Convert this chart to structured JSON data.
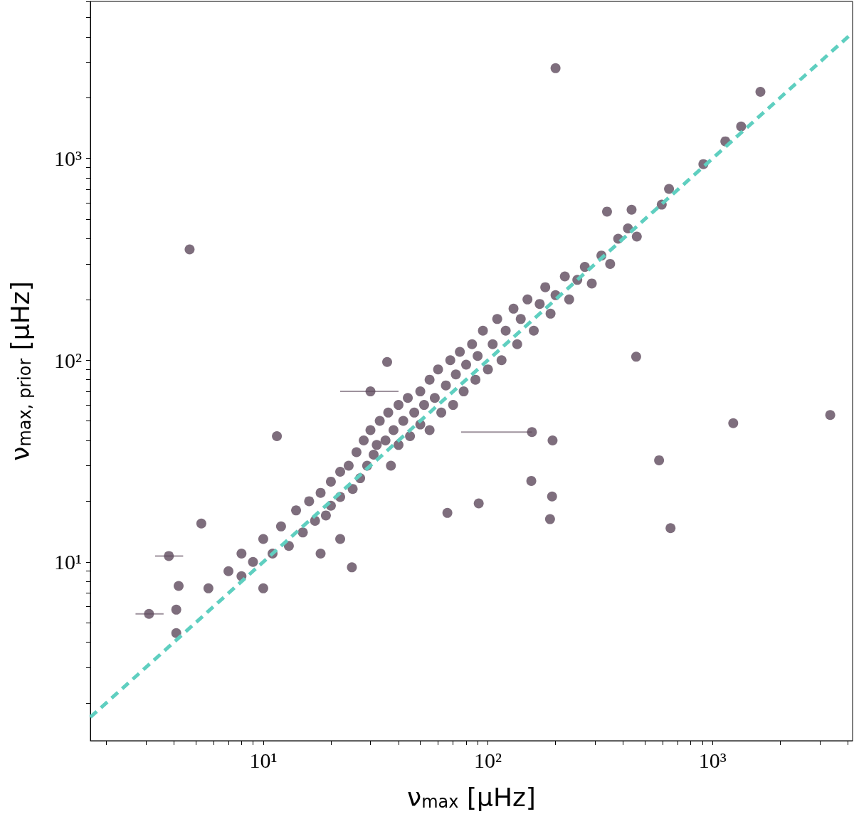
{
  "chart_data": {
    "type": "scatter",
    "xlabel": "ν$_{max}$ [μHz]",
    "ylabel": "ν$_{max, prior}$ [μHz]",
    "log": "xy",
    "grid": false,
    "xlim": [
      1.7,
      4200
    ],
    "ylim": [
      1.3,
      6000
    ],
    "xticks": [
      {
        "value": 2,
        "label": null
      },
      {
        "value": 3,
        "label": null
      },
      {
        "value": 4,
        "label": null
      },
      {
        "value": 5,
        "label": null
      },
      {
        "value": 6,
        "label": null
      },
      {
        "value": 7,
        "label": null
      },
      {
        "value": 8,
        "label": null
      },
      {
        "value": 9,
        "label": null
      },
      {
        "value": 10,
        "label": "10¹"
      },
      {
        "value": 20,
        "label": null
      },
      {
        "value": 30,
        "label": null
      },
      {
        "value": 40,
        "label": null
      },
      {
        "value": 50,
        "label": null
      },
      {
        "value": 60,
        "label": null
      },
      {
        "value": 70,
        "label": null
      },
      {
        "value": 80,
        "label": null
      },
      {
        "value": 90,
        "label": null
      },
      {
        "value": 100,
        "label": "10²"
      },
      {
        "value": 200,
        "label": null
      },
      {
        "value": 300,
        "label": null
      },
      {
        "value": 400,
        "label": null
      },
      {
        "value": 500,
        "label": null
      },
      {
        "value": 600,
        "label": null
      },
      {
        "value": 700,
        "label": null
      },
      {
        "value": 800,
        "label": null
      },
      {
        "value": 900,
        "label": null
      },
      {
        "value": 1000,
        "label": "10³"
      },
      {
        "value": 2000,
        "label": null
      },
      {
        "value": 3000,
        "label": null
      },
      {
        "value": 4000,
        "label": null
      }
    ],
    "yticks": [
      {
        "value": 2,
        "label": null
      },
      {
        "value": 3,
        "label": null
      },
      {
        "value": 4,
        "label": null
      },
      {
        "value": 5,
        "label": null
      },
      {
        "value": 6,
        "label": null
      },
      {
        "value": 7,
        "label": null
      },
      {
        "value": 8,
        "label": null
      },
      {
        "value": 9,
        "label": null
      },
      {
        "value": 10,
        "label": "10¹"
      },
      {
        "value": 20,
        "label": null
      },
      {
        "value": 30,
        "label": null
      },
      {
        "value": 40,
        "label": null
      },
      {
        "value": 50,
        "label": null
      },
      {
        "value": 60,
        "label": null
      },
      {
        "value": 70,
        "label": null
      },
      {
        "value": 80,
        "label": null
      },
      {
        "value": 90,
        "label": null
      },
      {
        "value": 100,
        "label": "10²"
      },
      {
        "value": 200,
        "label": null
      },
      {
        "value": 300,
        "label": null
      },
      {
        "value": 400,
        "label": null
      },
      {
        "value": 500,
        "label": null
      },
      {
        "value": 600,
        "label": null
      },
      {
        "value": 700,
        "label": null
      },
      {
        "value": 800,
        "label": null
      },
      {
        "value": 900,
        "label": null
      },
      {
        "value": 1000,
        "label": "10³"
      },
      {
        "value": 2000,
        "label": null
      },
      {
        "value": 3000,
        "label": null
      },
      {
        "value": 4000,
        "label": null
      },
      {
        "value": 5000,
        "label": null
      },
      {
        "value": 6000,
        "label": null
      }
    ],
    "series": [
      {
        "type": "scatter",
        "color": "#5e4a5c",
        "marker": "circle",
        "x": [
          7,
          8,
          9,
          10,
          11,
          12,
          13,
          14,
          15,
          16,
          17,
          18,
          19,
          20,
          20,
          22,
          22,
          24,
          25,
          26,
          27,
          28,
          29,
          30,
          31,
          32,
          33,
          35,
          36,
          37,
          38,
          40,
          40,
          42,
          44,
          45,
          47,
          50,
          50,
          52,
          55,
          55,
          58,
          60,
          62,
          65,
          68,
          70,
          72,
          75,
          78,
          80,
          85,
          88,
          90,
          95,
          100,
          105,
          110,
          115,
          120,
          130,
          135,
          140,
          150,
          160,
          170,
          180,
          190,
          200,
          220,
          230,
          250,
          270,
          290,
          320,
          350,
          380,
          420,
          460,
          4.7,
          200,
          1633,
          3340,
          1236,
          650,
          578,
          457,
          189,
          193,
          156,
          194,
          157,
          91,
          66,
          3.1,
          4.1,
          4.1,
          4.2,
          3.8,
          5.3,
          5.7,
          8.0,
          10,
          24.8,
          11.5,
          35.6,
          339,
          436,
          640,
          910,
          1140,
          1340,
          594,
          30,
          18,
          22
        ],
        "values": [
          9,
          11,
          10,
          13,
          11,
          15,
          12,
          18,
          14,
          20,
          16,
          22,
          17,
          25,
          19,
          28,
          21,
          30,
          23,
          35,
          26,
          40,
          30,
          45,
          34,
          38,
          50,
          40,
          55,
          30,
          45,
          60,
          38,
          50,
          65,
          42,
          55,
          70,
          48,
          60,
          80,
          45,
          65,
          90,
          55,
          75,
          100,
          60,
          85,
          110,
          70,
          95,
          120,
          80,
          105,
          140,
          90,
          120,
          160,
          100,
          140,
          180,
          120,
          160,
          200,
          140,
          190,
          230,
          170,
          210,
          260,
          200,
          250,
          290,
          240,
          330,
          300,
          400,
          450,
          410,
          354,
          2800,
          2140,
          53.5,
          48.7,
          14.7,
          31.9,
          104,
          16.3,
          21.1,
          25.2,
          40,
          44,
          19.5,
          17.5,
          5.53,
          4.44,
          5.8,
          7.6,
          10.7,
          15.5,
          7.4,
          8.5,
          7.4,
          9.4,
          42,
          98,
          545,
          557,
          706,
          937,
          1215,
          1440,
          590,
          70,
          11,
          13
        ],
        "xerrors": [
          null,
          null,
          null,
          null,
          null,
          null,
          null,
          null,
          null,
          null,
          null,
          null,
          null,
          null,
          null,
          null,
          null,
          null,
          null,
          null,
          null,
          null,
          null,
          null,
          null,
          null,
          null,
          null,
          null,
          null,
          null,
          null,
          null,
          null,
          null,
          null,
          null,
          null,
          null,
          null,
          null,
          null,
          null,
          null,
          null,
          null,
          null,
          null,
          null,
          null,
          null,
          null,
          null,
          null,
          null,
          null,
          null,
          null,
          null,
          null,
          null,
          null,
          null,
          null,
          null,
          null,
          null,
          null,
          null,
          null,
          null,
          null,
          null,
          null,
          null,
          null,
          null,
          null,
          null,
          null,
          null,
          null,
          null,
          null,
          null,
          null,
          null,
          null,
          null,
          null,
          null,
          null,
          [
            76,
            157
          ],
          null,
          null,
          [
            2.7,
            3.6
          ],
          null,
          null,
          null,
          [
            3.3,
            4.4
          ],
          null,
          null,
          null,
          null,
          null,
          null,
          null,
          null,
          null,
          null,
          null,
          null,
          null,
          null,
          [
            22,
            40
          ],
          null,
          null
        ]
      },
      {
        "type": "line",
        "color": "#5fcfc0",
        "line_style": "dashed",
        "marker": "none",
        "x": [
          1.7,
          4200
        ],
        "values": [
          1.7,
          4200
        ]
      }
    ]
  }
}
